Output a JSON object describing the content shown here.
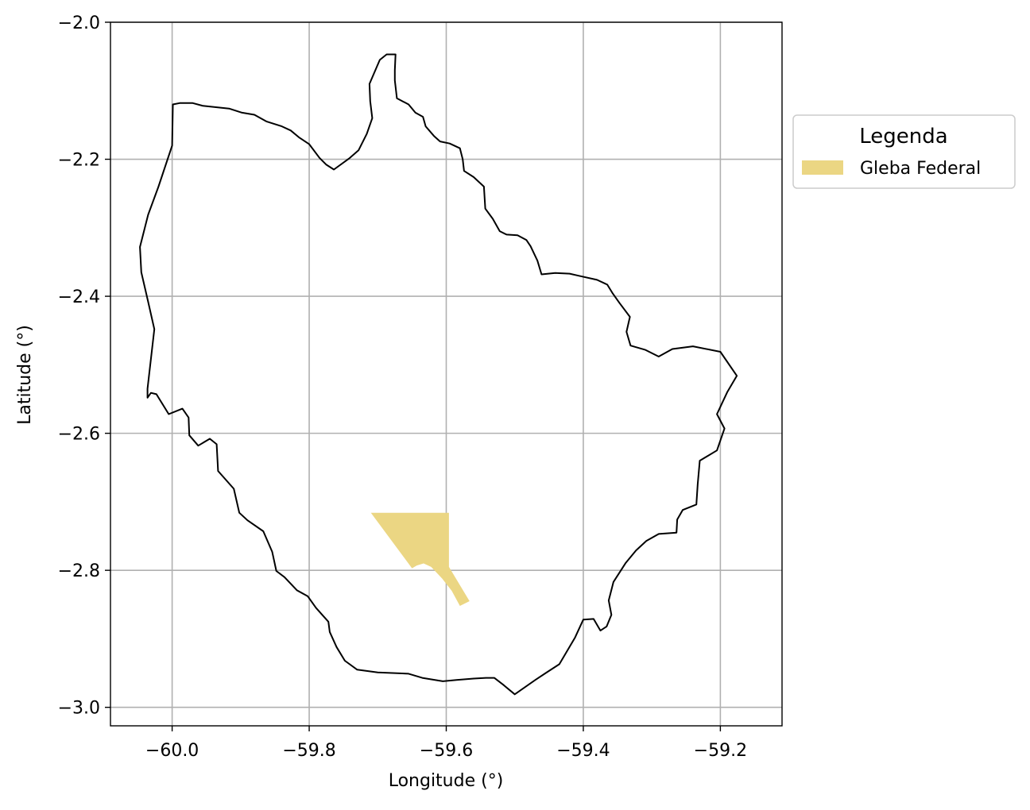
{
  "chart_data": {
    "type": "map",
    "xlabel": "Longitude (°)",
    "ylabel": "Latitude (°)",
    "xlim": [
      -60.09,
      -59.11
    ],
    "ylim": [
      -3.027,
      -2.0
    ],
    "grid": true,
    "x_ticks": [
      -60.0,
      -59.8,
      -59.6,
      -59.4,
      -59.2
    ],
    "y_ticks": [
      -2.0,
      -2.2,
      -2.4,
      -2.6,
      -2.8,
      -3.0
    ],
    "x_tick_labels": [
      "−60.0",
      "−59.8",
      "−59.6",
      "−59.4",
      "−59.2"
    ],
    "y_tick_labels": [
      "−2.0",
      "−2.2",
      "−2.4",
      "−2.6",
      "−2.8",
      "−3.0"
    ],
    "legend": {
      "title": "Legenda",
      "placement": "outside-right",
      "entries": [
        {
          "label": "Gleba Federal",
          "color": "#ebd683"
        }
      ]
    },
    "layers": [
      {
        "kind": "boundary",
        "style": {
          "stroke": "#000000",
          "fill": "none"
        },
        "coords": [
          [
            -59.687,
            -2.047
          ],
          [
            -59.674,
            -2.047
          ],
          [
            -59.675,
            -2.07
          ],
          [
            -59.675,
            -2.085
          ],
          [
            -59.672,
            -2.111
          ],
          [
            -59.655,
            -2.12
          ],
          [
            -59.645,
            -2.132
          ],
          [
            -59.634,
            -2.138
          ],
          [
            -59.63,
            -2.152
          ],
          [
            -59.618,
            -2.166
          ],
          [
            -59.609,
            -2.174
          ],
          [
            -59.595,
            -2.177
          ],
          [
            -59.58,
            -2.184
          ],
          [
            -59.576,
            -2.2
          ],
          [
            -59.574,
            -2.217
          ],
          [
            -59.56,
            -2.226
          ],
          [
            -59.545,
            -2.24
          ],
          [
            -59.543,
            -2.272
          ],
          [
            -59.532,
            -2.287
          ],
          [
            -59.522,
            -2.305
          ],
          [
            -59.512,
            -2.31
          ],
          [
            -59.496,
            -2.311
          ],
          [
            -59.483,
            -2.318
          ],
          [
            -59.477,
            -2.327
          ],
          [
            -59.467,
            -2.348
          ],
          [
            -59.461,
            -2.368
          ],
          [
            -59.441,
            -2.366
          ],
          [
            -59.42,
            -2.367
          ],
          [
            -59.407,
            -2.37
          ],
          [
            -59.38,
            -2.376
          ],
          [
            -59.365,
            -2.383
          ],
          [
            -59.357,
            -2.396
          ],
          [
            -59.347,
            -2.41
          ],
          [
            -59.332,
            -2.43
          ],
          [
            -59.337,
            -2.452
          ],
          [
            -59.331,
            -2.472
          ],
          [
            -59.31,
            -2.478
          ],
          [
            -59.29,
            -2.488
          ],
          [
            -59.27,
            -2.477
          ],
          [
            -59.24,
            -2.473
          ],
          [
            -59.2,
            -2.481
          ],
          [
            -59.176,
            -2.516
          ],
          [
            -59.19,
            -2.54
          ],
          [
            -59.205,
            -2.572
          ],
          [
            -59.194,
            -2.593
          ],
          [
            -59.205,
            -2.625
          ],
          [
            -59.23,
            -2.64
          ],
          [
            -59.233,
            -2.674
          ],
          [
            -59.235,
            -2.704
          ],
          [
            -59.255,
            -2.712
          ],
          [
            -59.263,
            -2.726
          ],
          [
            -59.264,
            -2.745
          ],
          [
            -59.29,
            -2.747
          ],
          [
            -59.308,
            -2.757
          ],
          [
            -59.323,
            -2.771
          ],
          [
            -59.338,
            -2.789
          ],
          [
            -59.356,
            -2.817
          ],
          [
            -59.363,
            -2.844
          ],
          [
            -59.359,
            -2.865
          ],
          [
            -59.366,
            -2.882
          ],
          [
            -59.375,
            -2.888
          ],
          [
            -59.385,
            -2.871
          ],
          [
            -59.4,
            -2.872
          ],
          [
            -59.412,
            -2.898
          ],
          [
            -59.435,
            -2.937
          ],
          [
            -59.455,
            -2.95
          ],
          [
            -59.47,
            -2.96
          ],
          [
            -59.5,
            -2.981
          ],
          [
            -59.517,
            -2.967
          ],
          [
            -59.53,
            -2.957
          ],
          [
            -59.542,
            -2.957
          ],
          [
            -59.56,
            -2.958
          ],
          [
            -59.585,
            -2.96
          ],
          [
            -59.605,
            -2.962
          ],
          [
            -59.635,
            -2.957
          ],
          [
            -59.655,
            -2.951
          ],
          [
            -59.7,
            -2.949
          ],
          [
            -59.73,
            -2.945
          ],
          [
            -59.748,
            -2.932
          ],
          [
            -59.76,
            -2.912
          ],
          [
            -59.77,
            -2.89
          ],
          [
            -59.772,
            -2.875
          ],
          [
            -59.79,
            -2.855
          ],
          [
            -59.802,
            -2.838
          ],
          [
            -59.818,
            -2.829
          ],
          [
            -59.836,
            -2.81
          ],
          [
            -59.848,
            -2.801
          ],
          [
            -59.854,
            -2.773
          ],
          [
            -59.867,
            -2.743
          ],
          [
            -59.89,
            -2.727
          ],
          [
            -59.902,
            -2.716
          ],
          [
            -59.91,
            -2.681
          ],
          [
            -59.933,
            -2.655
          ],
          [
            -59.935,
            -2.616
          ],
          [
            -59.945,
            -2.608
          ],
          [
            -59.962,
            -2.618
          ],
          [
            -59.975,
            -2.603
          ],
          [
            -59.976,
            -2.577
          ],
          [
            -59.985,
            -2.564
          ],
          [
            -60.005,
            -2.572
          ],
          [
            -60.023,
            -2.543
          ],
          [
            -60.031,
            -2.541
          ],
          [
            -60.036,
            -2.548
          ],
          [
            -60.036,
            -2.535
          ],
          [
            -60.026,
            -2.448
          ],
          [
            -60.035,
            -2.408
          ],
          [
            -60.045,
            -2.365
          ],
          [
            -60.047,
            -2.328
          ],
          [
            -60.035,
            -2.281
          ],
          [
            -60.02,
            -2.24
          ],
          [
            -60.0,
            -2.18
          ],
          [
            -59.999,
            -2.12
          ],
          [
            -59.989,
            -2.118
          ],
          [
            -59.98,
            -2.118
          ],
          [
            -59.97,
            -2.118
          ],
          [
            -59.955,
            -2.122
          ],
          [
            -59.936,
            -2.124
          ],
          [
            -59.917,
            -2.126
          ],
          [
            -59.898,
            -2.132
          ],
          [
            -59.88,
            -2.135
          ],
          [
            -59.862,
            -2.145
          ],
          [
            -59.84,
            -2.152
          ],
          [
            -59.827,
            -2.158
          ],
          [
            -59.815,
            -2.168
          ],
          [
            -59.8,
            -2.178
          ],
          [
            -59.785,
            -2.198
          ],
          [
            -59.775,
            -2.208
          ],
          [
            -59.764,
            -2.215
          ],
          [
            -59.742,
            -2.199
          ],
          [
            -59.728,
            -2.187
          ],
          [
            -59.716,
            -2.163
          ],
          [
            -59.708,
            -2.14
          ],
          [
            -59.711,
            -2.115
          ],
          [
            -59.712,
            -2.09
          ],
          [
            -59.697,
            -2.055
          ],
          [
            -59.687,
            -2.047
          ]
        ]
      },
      {
        "kind": "polygon",
        "name": "Gleba Federal",
        "style": {
          "fill": "#ebd683",
          "stroke": "none"
        },
        "coords": [
          [
            -59.71,
            -2.716
          ],
          [
            -59.596,
            -2.716
          ],
          [
            -59.596,
            -2.795
          ],
          [
            -59.566,
            -2.845
          ],
          [
            -59.58,
            -2.852
          ],
          [
            -59.592,
            -2.83
          ],
          [
            -59.606,
            -2.812
          ],
          [
            -59.622,
            -2.795
          ],
          [
            -59.633,
            -2.79
          ],
          [
            -59.643,
            -2.793
          ],
          [
            -59.65,
            -2.797
          ],
          [
            -59.71,
            -2.716
          ]
        ]
      }
    ]
  }
}
